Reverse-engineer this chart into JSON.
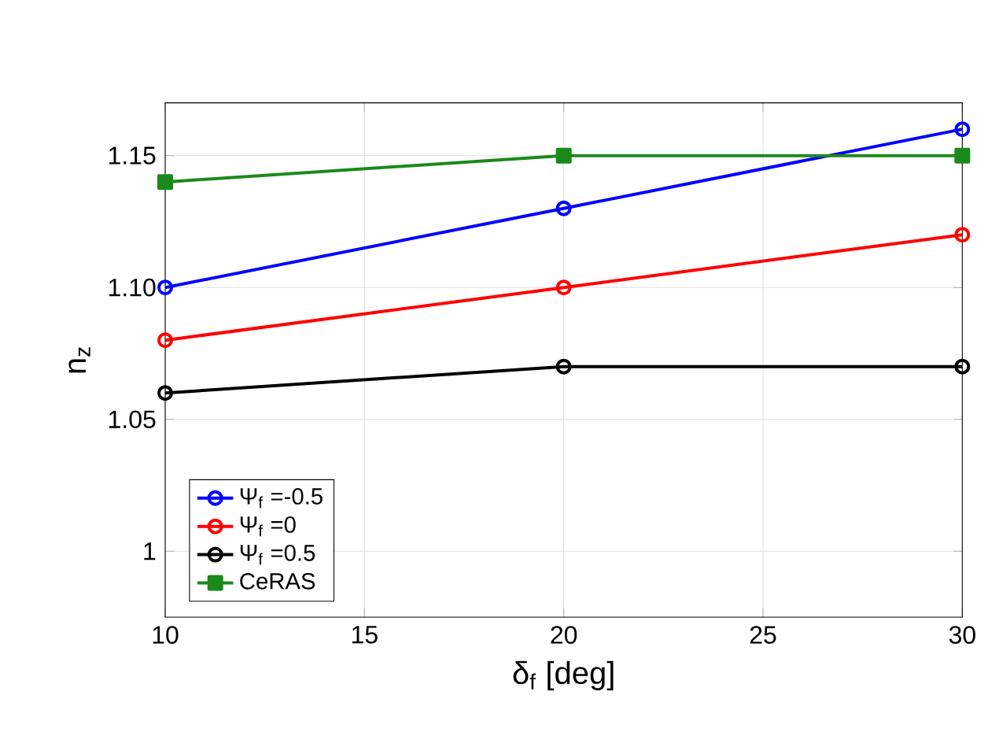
{
  "chart_data": {
    "type": "line",
    "xlabel": "δ$_{f}$ [deg]",
    "ylabel": "n$_{z}$",
    "x": [
      10,
      20,
      30
    ],
    "series": [
      {
        "name": "Ψ$_{f}$ =-0.5",
        "color": "#0000ff",
        "marker": "circle",
        "values": [
          1.1,
          1.13,
          1.16
        ]
      },
      {
        "name": "Ψ$_{f}$ =0",
        "color": "#ff0000",
        "marker": "circle",
        "values": [
          1.08,
          1.1,
          1.12
        ]
      },
      {
        "name": "Ψ$_{f}$ =0.5",
        "color": "#000000",
        "marker": "circle",
        "values": [
          1.06,
          1.07,
          1.07
        ]
      },
      {
        "name": "CeRAS",
        "color": "#1a8a1a",
        "marker": "square",
        "values": [
          1.14,
          1.15,
          1.15
        ]
      }
    ],
    "xlim": [
      10,
      30
    ],
    "ylim": [
      0.975,
      1.17
    ],
    "xticks": [
      10,
      15,
      20,
      25,
      30
    ],
    "yticks": [
      {
        "value": 1,
        "label": "1"
      },
      1.05,
      {
        "value": 1.1,
        "label": "1.10"
      },
      1.15
    ],
    "grid": true,
    "legend": "bottom left",
    "line_style": "solid"
  }
}
